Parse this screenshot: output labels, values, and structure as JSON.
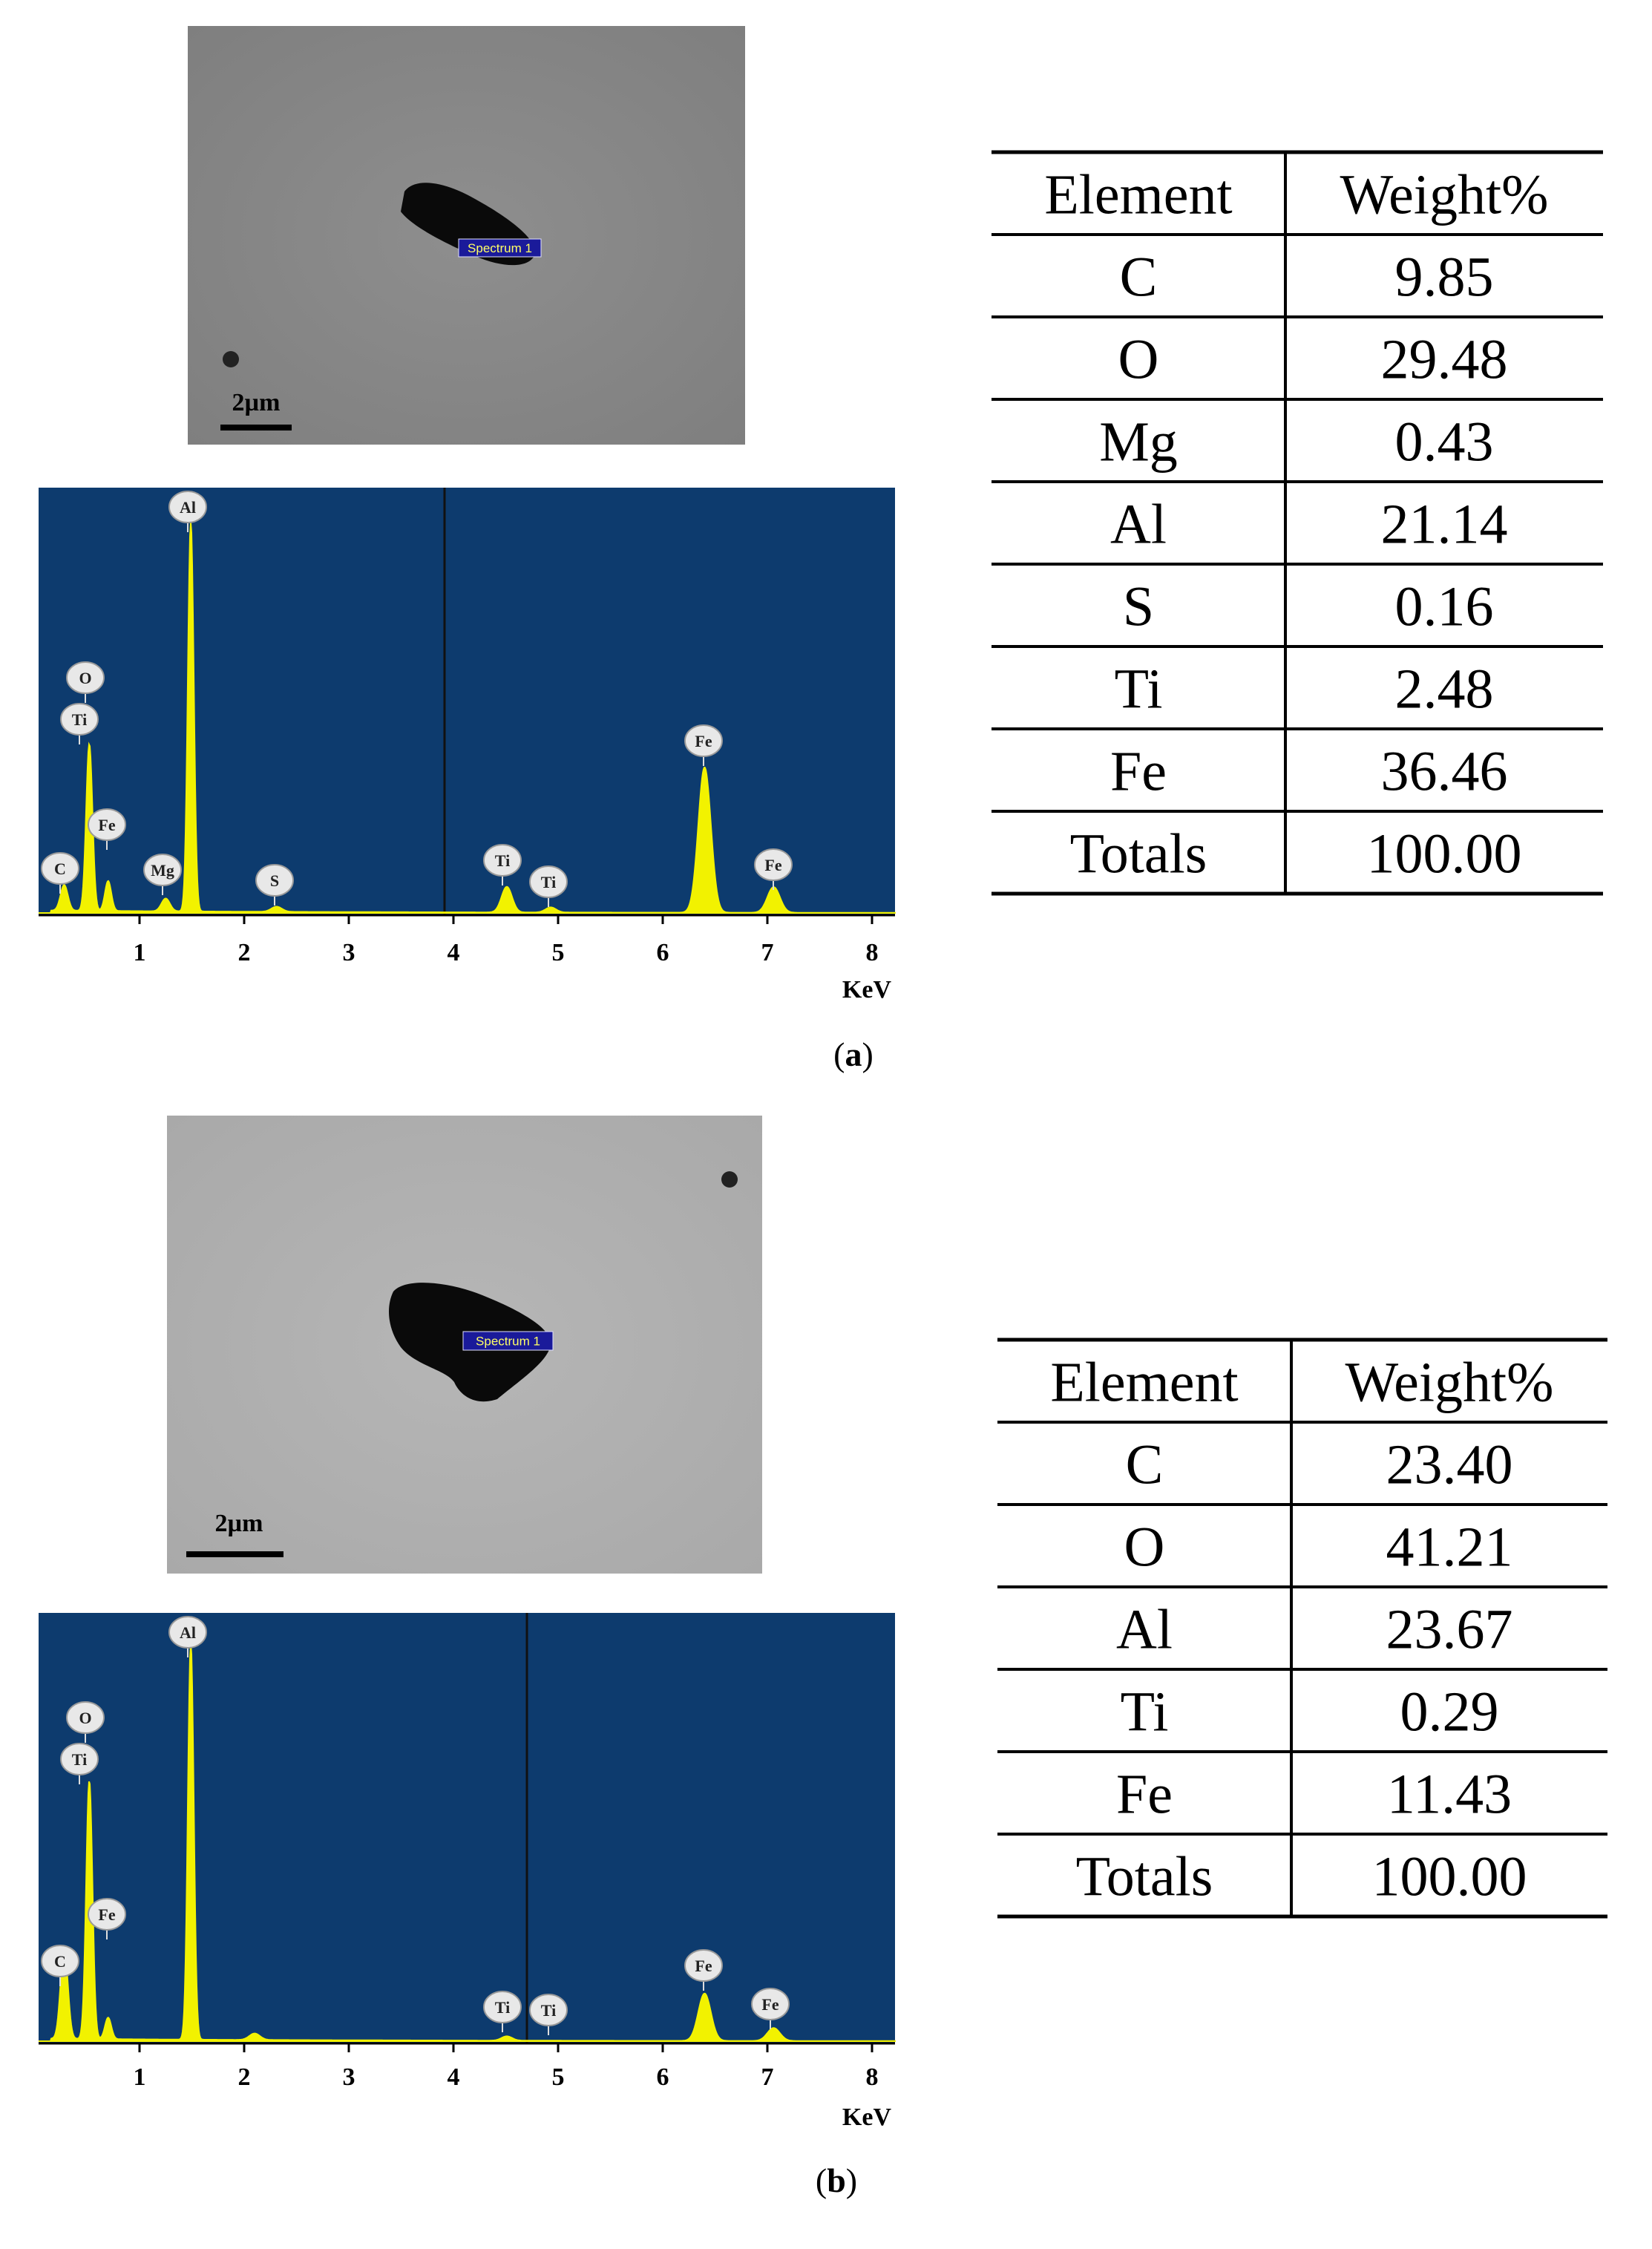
{
  "panels": [
    {
      "caption": [
        "(",
        "a",
        ")"
      ],
      "sem": {
        "spectrum_label": "Spectrum 1",
        "scale_bar": "2µm"
      },
      "spectrum": {
        "peak_labels": [
          "Al",
          "O",
          "Ti",
          "Fe",
          "C",
          "Mg",
          "S",
          "Ti",
          "Ti",
          "Fe",
          "Fe"
        ],
        "x_ticks": [
          "1",
          "2",
          "3",
          "4",
          "5",
          "6",
          "7",
          "8"
        ],
        "x_unit": "KeV"
      },
      "table": {
        "header": [
          "Element",
          "Weight%"
        ],
        "rows": [
          [
            "C",
            "9.85"
          ],
          [
            "O",
            "29.48"
          ],
          [
            "Mg",
            "0.43"
          ],
          [
            "Al",
            "21.14"
          ],
          [
            "S",
            "0.16"
          ],
          [
            "Ti",
            "2.48"
          ],
          [
            "Fe",
            "36.46"
          ],
          [
            "Totals",
            "100.00"
          ]
        ]
      }
    },
    {
      "caption": [
        "(",
        "b",
        ")"
      ],
      "sem": {
        "spectrum_label": "Spectrum 1",
        "scale_bar": "2µm"
      },
      "spectrum": {
        "peak_labels": [
          "Al",
          "O",
          "Ti",
          "Fe",
          "C",
          "Ti",
          "Ti",
          "Fe",
          "Fe"
        ],
        "x_ticks": [
          "1",
          "2",
          "3",
          "4",
          "5",
          "6",
          "7",
          "8"
        ],
        "x_unit": "KeV"
      },
      "table": {
        "header": [
          "Element",
          "Weight%"
        ],
        "rows": [
          [
            "C",
            "23.40"
          ],
          [
            "O",
            "41.21"
          ],
          [
            "Al",
            "23.67"
          ],
          [
            "Ti",
            "0.29"
          ],
          [
            "Fe",
            "11.43"
          ],
          [
            "Totals",
            "100.00"
          ]
        ]
      }
    }
  ]
}
